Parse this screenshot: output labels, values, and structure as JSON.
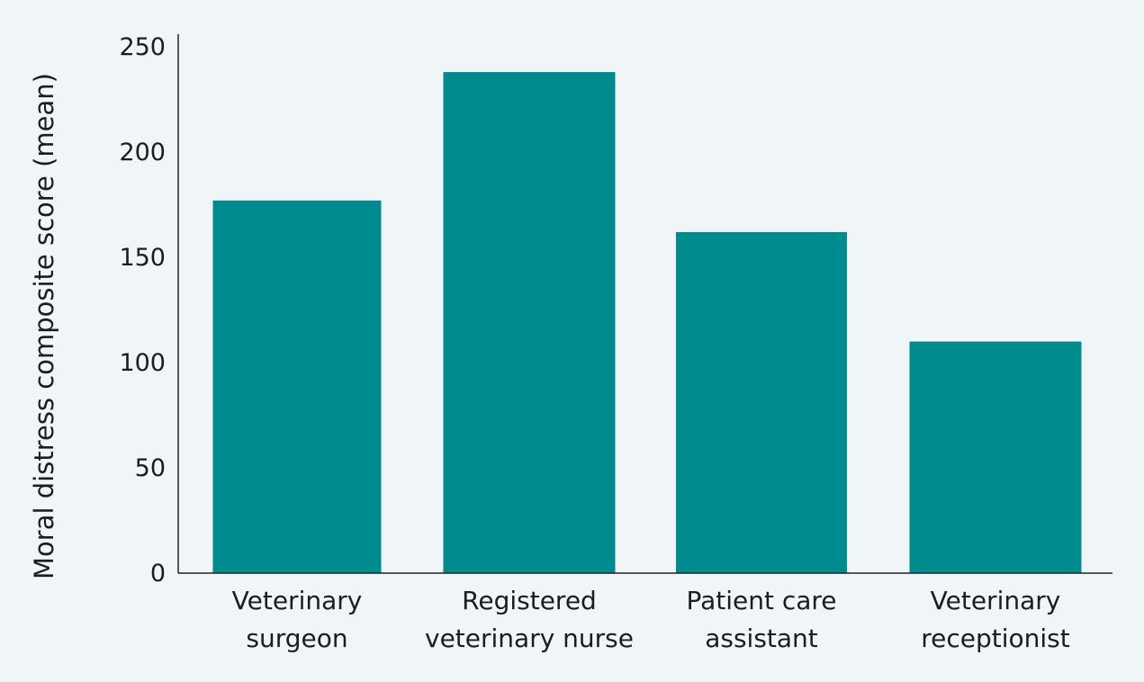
{
  "chart_data": {
    "type": "bar",
    "title": "",
    "xlabel": "",
    "ylabel": "Moral distress composite score (mean)",
    "categories": [
      [
        "Veterinary",
        "surgeon"
      ],
      [
        "Registered",
        "veterinary nurse"
      ],
      [
        "Patient care",
        "assistant"
      ],
      [
        "Veterinary",
        "receptionist"
      ]
    ],
    "values": [
      177,
      238,
      162,
      110
    ],
    "ylim": [
      0,
      255
    ],
    "yticks": [
      "0",
      "50",
      "100",
      "150",
      "200",
      "250"
    ],
    "grid": false,
    "legend": "none",
    "colors": {
      "bar": "#008b8e",
      "axis": "#222222",
      "background": "#f0f5f8"
    }
  }
}
